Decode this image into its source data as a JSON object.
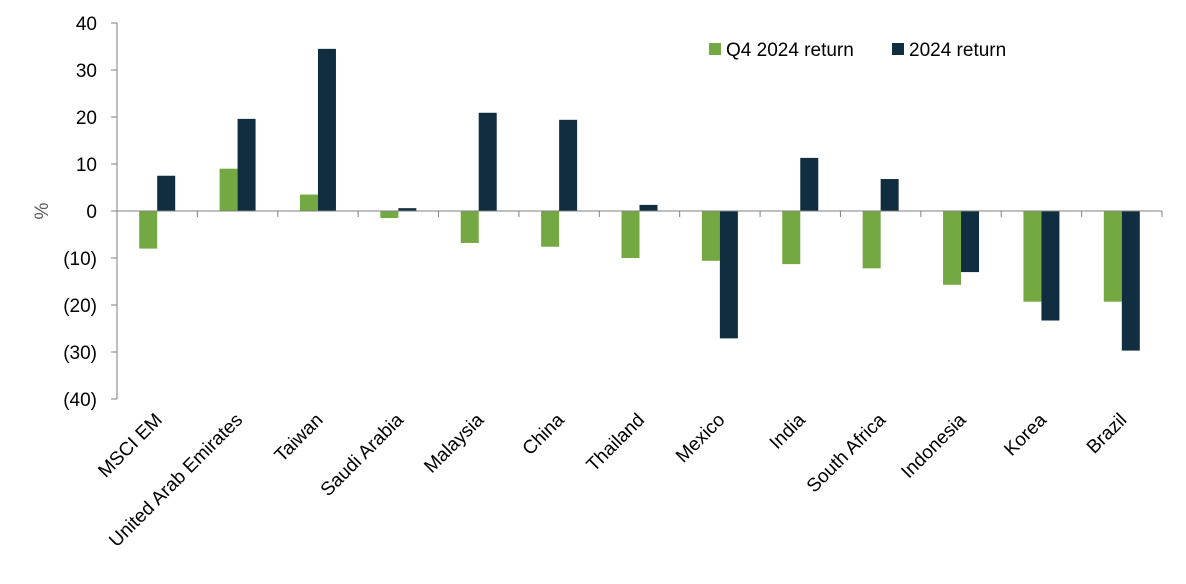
{
  "chart_data": {
    "type": "bar",
    "title": "",
    "xlabel": "",
    "ylabel": "%",
    "ylim": [
      -40,
      40
    ],
    "yticks": [
      40,
      30,
      20,
      10,
      0,
      -10,
      -20,
      -30,
      -40
    ],
    "ytick_labels": [
      "40",
      "30",
      "20",
      "10",
      "0",
      "(10)",
      "(20)",
      "(30)",
      "(40)"
    ],
    "grid": false,
    "legend_position": "top-right",
    "categories": [
      "MSCI EM",
      "United Arab Emirates",
      "Taiwan",
      "Saudi Arabia",
      "Malaysia",
      "China",
      "Thailand",
      "Mexico",
      "India",
      "South Africa",
      "Indonesia",
      "Korea",
      "Brazil"
    ],
    "series": [
      {
        "name": "Q4 2024 return",
        "color": "#74A843",
        "values": [
          -8.0,
          9.0,
          3.5,
          -1.5,
          -6.8,
          -7.6,
          -10.0,
          -10.6,
          -11.3,
          -12.2,
          -15.7,
          -19.3,
          -19.3
        ]
      },
      {
        "name": "2024 return",
        "color": "#102E40",
        "values": [
          7.5,
          19.6,
          34.5,
          0.6,
          20.9,
          19.4,
          1.3,
          -27.1,
          11.3,
          6.8,
          -13.0,
          -23.3,
          -29.7
        ]
      }
    ]
  }
}
